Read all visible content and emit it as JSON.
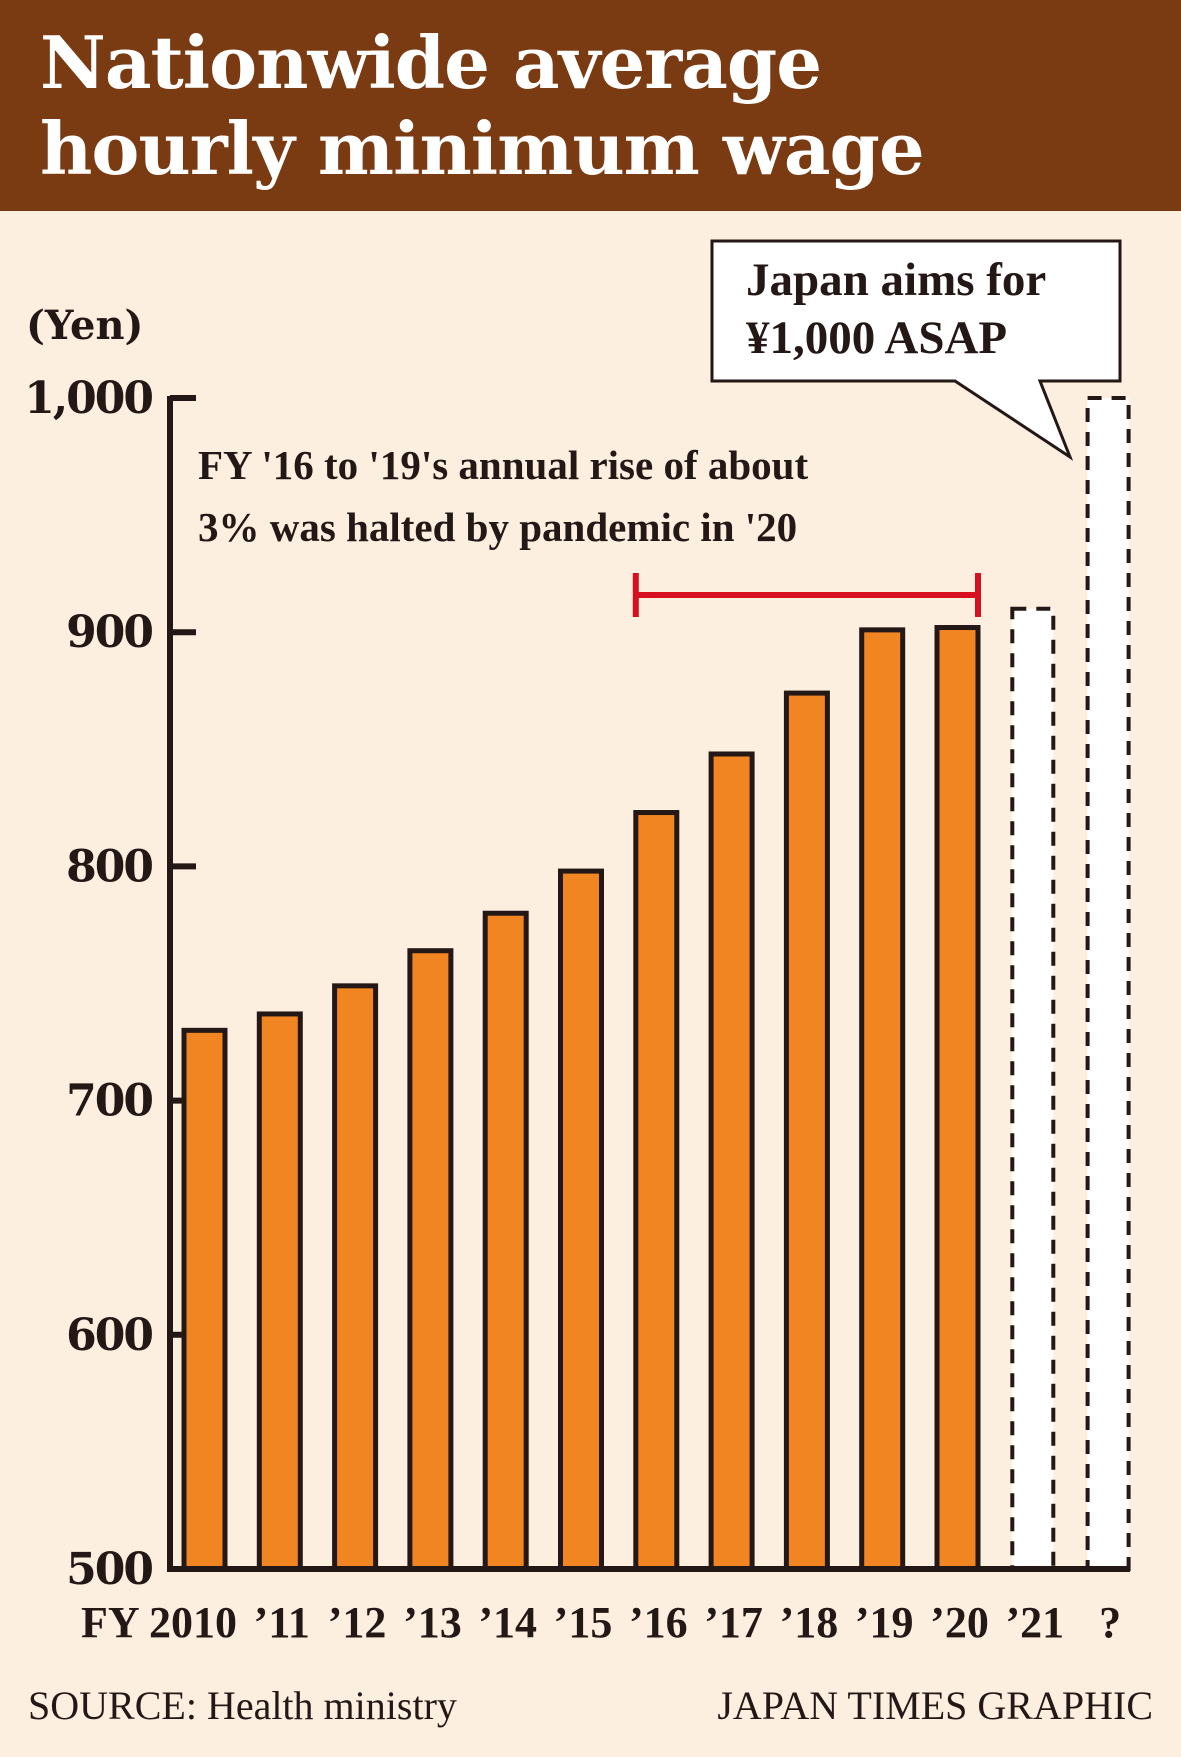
{
  "header": {
    "title_line1": "Nationwide average",
    "title_line2": "hourly minimum wage"
  },
  "colors": {
    "header_bg": "#7a3a12",
    "page_bg": "#fcefdf",
    "bar_fill": "#f08522",
    "bar_outline": "#231815",
    "bracket": "#d7101f",
    "projected_fill": "#ffffff"
  },
  "annotation": {
    "line1": "FY '16 to '19's annual rise of about",
    "line2": "3% was halted by pandemic in '20"
  },
  "callout": {
    "line1": "Japan aims for",
    "line2": "¥1,000 ASAP"
  },
  "footer": {
    "source": "SOURCE: Health ministry",
    "credit": "JAPAN TIMES GRAPHIC"
  },
  "chart_data": {
    "type": "bar",
    "title": "Nationwide average hourly minimum wage",
    "ylabel": "(Yen)",
    "xlabel": "",
    "ylim": [
      500,
      1000
    ],
    "yticks": [
      500,
      600,
      700,
      800,
      900,
      1000
    ],
    "ytick_labels": [
      "500",
      "600",
      "700",
      "800",
      "900",
      "1,000"
    ],
    "grid": false,
    "categories": [
      "FY 2010",
      "’11",
      "’12",
      "’13",
      "’14",
      "’15",
      "’16",
      "’17",
      "’18",
      "’19",
      "’20",
      "’21",
      "?"
    ],
    "values": [
      730,
      737,
      749,
      764,
      780,
      798,
      823,
      848,
      874,
      901,
      902,
      910,
      1000
    ],
    "projected": [
      false,
      false,
      false,
      false,
      false,
      false,
      false,
      false,
      false,
      false,
      false,
      true,
      true
    ],
    "bracket_range": [
      "’16",
      "’20"
    ]
  }
}
